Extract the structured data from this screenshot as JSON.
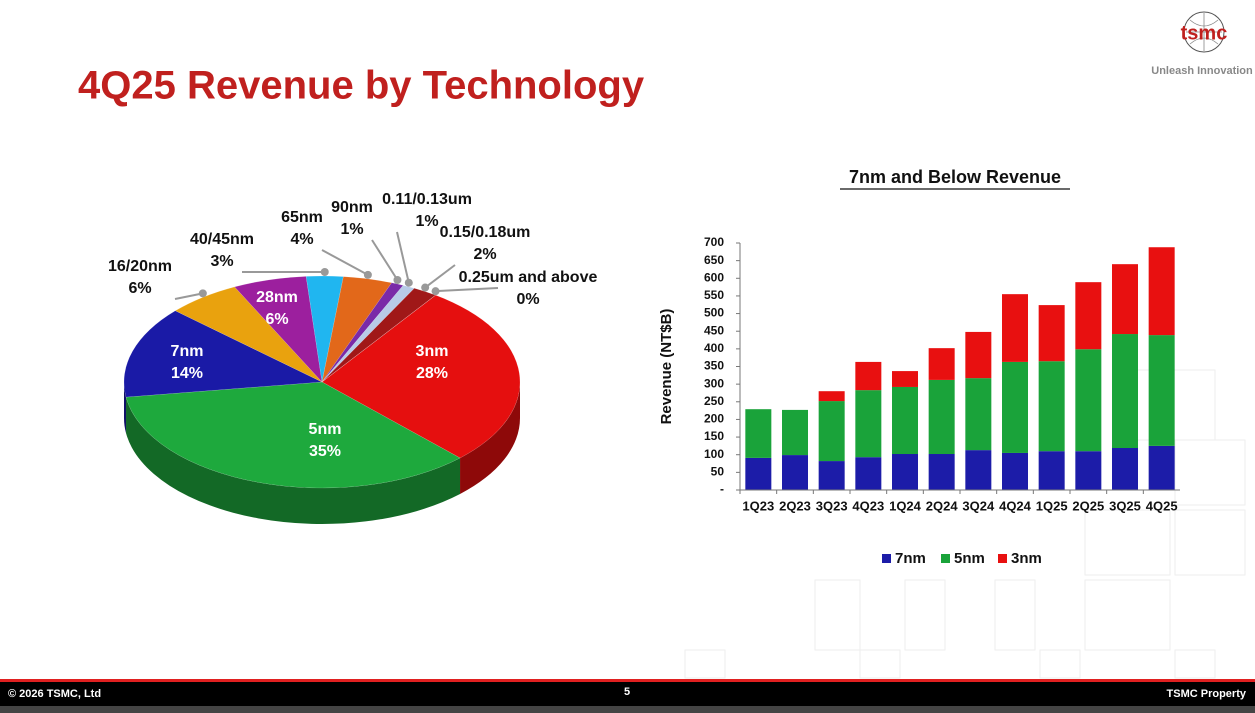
{
  "title": "4Q25 Revenue by Technology",
  "logo": {
    "name": "tsmc",
    "tagline": "Unleash Innovation"
  },
  "footer": {
    "copyright": "© 2026 TSMC, Ltd",
    "page": "5",
    "property": "TSMC Property"
  },
  "chart_data": [
    {
      "type": "pie",
      "categories": [
        "3nm",
        "5nm",
        "7nm",
        "16/20nm",
        "28nm",
        "40/45nm",
        "65nm",
        "90nm",
        "0.11/0.13um",
        "0.15/0.18um",
        "0.25um and above"
      ],
      "values": [
        28,
        35,
        14,
        6,
        6,
        3,
        4,
        1,
        1,
        2,
        0
      ],
      "value_labels": [
        "28%",
        "35%",
        "14%",
        "6%",
        "6%",
        "3%",
        "4%",
        "1%",
        "1%",
        "2%",
        "0%"
      ],
      "colors": [
        "#e50f0f",
        "#1ea93d",
        "#1a1aa6",
        "#e9a20e",
        "#9c1f9e",
        "#20b6f0",
        "#e2681a",
        "#7a2aa8",
        "#b8cbe8",
        "#a01818",
        "#c81010"
      ]
    },
    {
      "type": "bar",
      "stacked": true,
      "title": "7nm and Below Revenue",
      "ylabel": "Revenue (NT$B)",
      "categories": [
        "1Q23",
        "2Q23",
        "3Q23",
        "4Q23",
        "1Q24",
        "2Q24",
        "3Q24",
        "4Q24",
        "1Q25",
        "2Q25",
        "3Q25",
        "4Q25"
      ],
      "series": [
        {
          "name": "7nm",
          "color": "#1c1ca8",
          "values": [
            91,
            99,
            82,
            93,
            102,
            102,
            113,
            105,
            110,
            110,
            119,
            125
          ]
        },
        {
          "name": "5nm",
          "color": "#1aa33a",
          "values": [
            138,
            128,
            170,
            190,
            190,
            210,
            204,
            258,
            255,
            289,
            323,
            314
          ]
        },
        {
          "name": "3nm",
          "color": "#e81010",
          "values": [
            0,
            0,
            28,
            80,
            45,
            90,
            131,
            192,
            159,
            190,
            198,
            249
          ]
        }
      ],
      "ylim": [
        0,
        700
      ],
      "yticks": [
        {
          "value": 0,
          "label": "-"
        },
        50,
        100,
        150,
        200,
        250,
        300,
        350,
        400,
        450,
        500,
        550,
        600,
        650,
        700
      ],
      "legend": "bottom"
    }
  ]
}
